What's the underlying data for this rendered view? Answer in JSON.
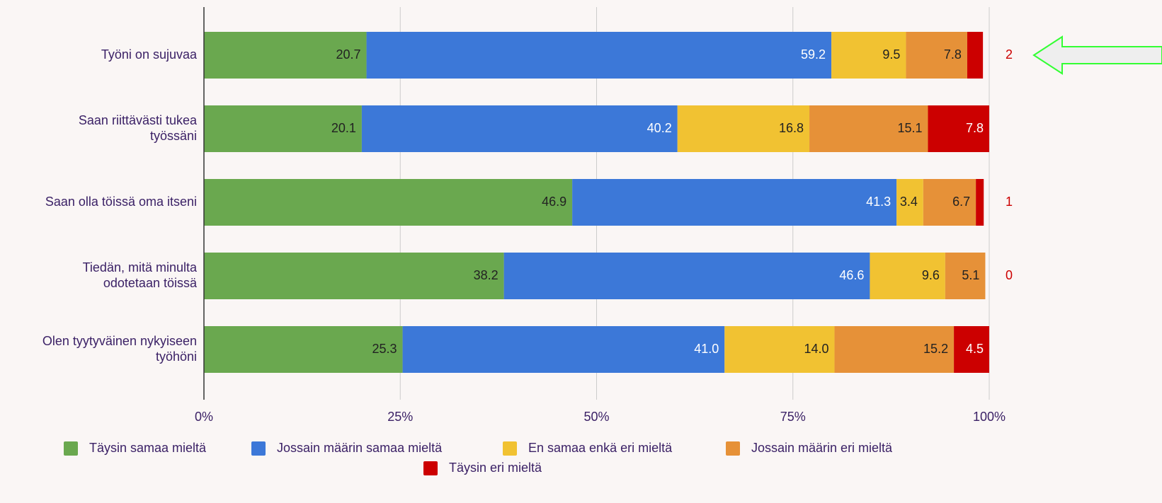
{
  "chart_data": {
    "type": "stacked_hbar",
    "categories": [
      "Työni on sujuvaa",
      "Saan riittävästi tukea työssäni",
      "Saan olla töissä oma itseni",
      "Tiedän, mitä minulta odotetaan töissä",
      "Olen tyytyväinen nykyiseen työhöni"
    ],
    "series": [
      {
        "name": "Täysin samaa mieltä",
        "color": "#6aa84f",
        "values": [
          20.7,
          20.1,
          46.9,
          38.2,
          25.3
        ],
        "value_labels": [
          "20.7",
          "20.1",
          "46.9",
          "38.2",
          "25.3"
        ]
      },
      {
        "name": "Jossain määrin samaa mieltä",
        "color": "#3c78d8",
        "values": [
          59.2,
          40.2,
          41.3,
          46.6,
          41.0
        ],
        "value_labels": [
          "59.2",
          "40.2",
          "41.3",
          "46.6",
          "41.0"
        ]
      },
      {
        "name": "En samaa enkä eri mieltä",
        "color": "#f1c232",
        "values": [
          9.5,
          16.8,
          3.4,
          9.6,
          14.0
        ],
        "value_labels": [
          "9.5",
          "16.8",
          "3.4",
          "9.6",
          "14.0"
        ]
      },
      {
        "name": "Jossain määrin eri mieltä",
        "color": "#e69138",
        "values": [
          7.8,
          15.1,
          6.7,
          5.1,
          15.2
        ],
        "value_labels": [
          "7.8",
          "15.1",
          "6.7",
          "5.1",
          "15.2"
        ]
      },
      {
        "name": "Täysin eri mieltä",
        "color": "#cc0000",
        "values": [
          2,
          7.8,
          1,
          0,
          4.5
        ],
        "value_labels": [
          "2",
          "7.8",
          "1",
          "0",
          "4.5"
        ]
      }
    ],
    "xlim": [
      0,
      100
    ],
    "xticks": [
      {
        "value": 0,
        "label": "0%"
      },
      {
        "value": 25,
        "label": "25%"
      },
      {
        "value": 50,
        "label": "50%"
      },
      {
        "value": 75,
        "label": "75%"
      },
      {
        "value": 100,
        "label": "100%"
      }
    ],
    "grid": true,
    "legend": "bottom"
  }
}
